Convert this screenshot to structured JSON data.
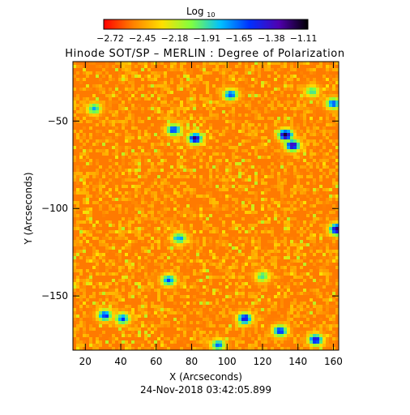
{
  "chart_data": {
    "type": "heatmap",
    "title": "Hinode SOT/SP – MERLIN : Degree of Polarization",
    "xlabel": "X (Arcseconds)",
    "ylabel": "Y (Arcseconds)",
    "footer": "24-Nov-2018 03:42:05.899",
    "xlim": [
      13,
      163
    ],
    "ylim": [
      -181,
      -16
    ],
    "x_ticks": [
      20,
      40,
      60,
      80,
      100,
      120,
      140,
      160
    ],
    "y_ticks": [
      -50,
      -100,
      -150
    ],
    "colorbar": {
      "title_base": "Log",
      "title_sub": "10",
      "ticks": [
        "−2.72",
        "−2.45",
        "−2.18",
        "−1.91",
        "−1.65",
        "−1.38",
        "−1.11"
      ],
      "vmin": -2.72,
      "vmax": -1.11,
      "colors": [
        "#ff0000",
        "#ff8000",
        "#ffe000",
        "#80ff40",
        "#00c0ff",
        "#0030ff",
        "#5000b0",
        "#000000"
      ]
    },
    "background_level": -2.5,
    "features": [
      {
        "x": 70,
        "y": -55,
        "level": -1.5
      },
      {
        "x": 82,
        "y": -60,
        "level": -1.3
      },
      {
        "x": 133,
        "y": -58,
        "level": -1.2
      },
      {
        "x": 137,
        "y": -64,
        "level": -1.3
      },
      {
        "x": 102,
        "y": -35,
        "level": -1.6
      },
      {
        "x": 148,
        "y": -33,
        "level": -1.9
      },
      {
        "x": 160,
        "y": -40,
        "level": -1.6
      },
      {
        "x": 25,
        "y": -43,
        "level": -1.8
      },
      {
        "x": 162,
        "y": -112,
        "level": -1.2
      },
      {
        "x": 73,
        "y": -117,
        "level": -1.7
      },
      {
        "x": 67,
        "y": -141,
        "level": -1.6
      },
      {
        "x": 31,
        "y": -161,
        "level": -1.5
      },
      {
        "x": 41,
        "y": -163,
        "level": -1.6
      },
      {
        "x": 110,
        "y": -163,
        "level": -1.4
      },
      {
        "x": 130,
        "y": -170,
        "level": -1.5
      },
      {
        "x": 150,
        "y": -175,
        "level": -1.4
      },
      {
        "x": 95,
        "y": -178,
        "level": -1.7
      },
      {
        "x": 120,
        "y": -139,
        "level": -1.9
      }
    ]
  }
}
